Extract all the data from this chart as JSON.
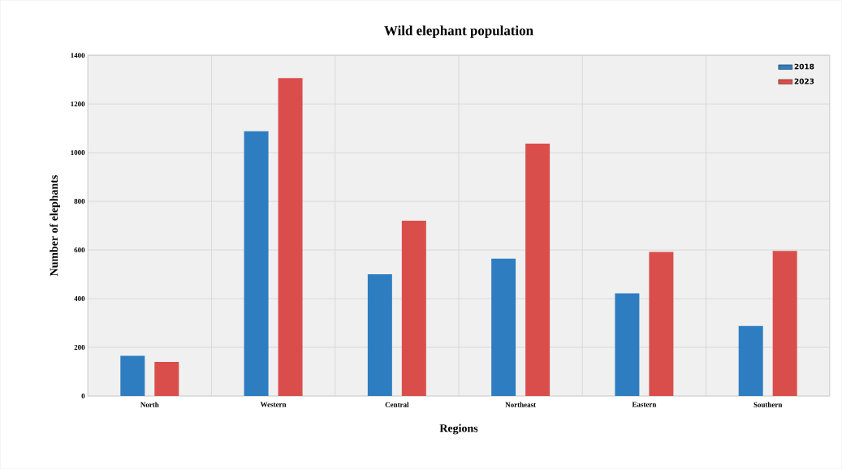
{
  "chart_data": {
    "type": "bar",
    "title": "Wild elephant population",
    "xlabel": "Regions",
    "ylabel": "Number of elephants",
    "categories": [
      "North",
      "Western",
      "Central",
      "Northeast",
      "Eastern",
      "Southern"
    ],
    "series": [
      {
        "name": "2018",
        "color": "#2e7dc1",
        "values": [
          165,
          1088,
          500,
          564,
          422,
          288
        ]
      },
      {
        "name": "2023",
        "color": "#d94e4b",
        "values": [
          140,
          1306,
          720,
          1037,
          592,
          596
        ]
      }
    ],
    "ylim": [
      0,
      1400
    ],
    "yticks": [
      0,
      200,
      400,
      600,
      800,
      1000,
      1200,
      1400
    ],
    "grid": true,
    "legend": "top right"
  }
}
